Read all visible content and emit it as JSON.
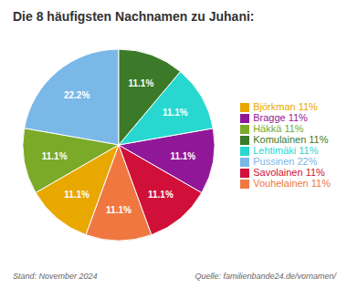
{
  "chart_data": {
    "type": "pie",
    "title": "Die 8 häufigsten Nachnamen zu Juhani:",
    "categories": [
      "Pussinen 22%",
      "Häkkä 11%",
      "Björkman 11%",
      "Vouhelainen 11%",
      "Savolainen 11%",
      "Bragge 11%",
      "Lehtimäki 11%",
      "Komulainen 11%"
    ],
    "values": [
      22.2,
      11.1,
      11.1,
      11.1,
      11.1,
      11.1,
      11.1,
      11.1
    ],
    "value_labels": [
      "22.2%",
      "11.1%",
      "11.1%",
      "11.1%",
      "11.1%",
      "11.1%",
      "11.1%",
      "11.1%"
    ],
    "data_labels": true,
    "colors": [
      "#7ab8e8",
      "#7aaa28",
      "#e8a800",
      "#f07840",
      "#d01038",
      "#901898",
      "#28d8d0",
      "#3a7a28"
    ],
    "legend": "right",
    "annotations": [
      "Stand: November 2024",
      "Quelle: familienbande24.de/vornamen/"
    ]
  }
}
